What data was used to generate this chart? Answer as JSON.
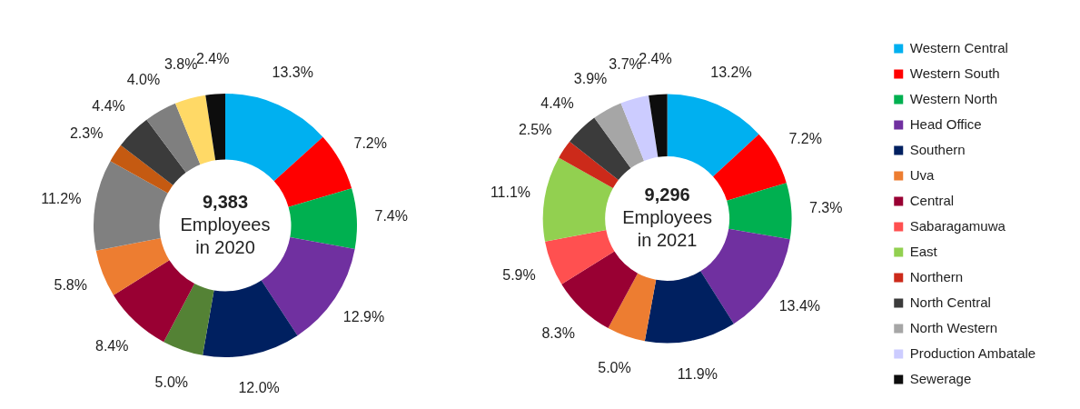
{
  "chart_data": [
    {
      "type": "donut",
      "title": "9,383",
      "subtitle": "Employees in 2020",
      "categories": [
        null,
        null,
        null,
        null,
        null,
        null,
        null,
        null,
        null,
        null,
        null,
        null,
        null,
        null
      ],
      "values": [
        13.3,
        7.2,
        7.4,
        12.9,
        12.0,
        5.0,
        8.4,
        5.8,
        11.2,
        2.3,
        4.4,
        4.0,
        3.8,
        2.4
      ],
      "value_labels": [
        "13.3%",
        "7.2%",
        "7.4%",
        "12.9%",
        "12.0%",
        "5.0%",
        "8.4%",
        "5.8%",
        "11.2%",
        "2.3%",
        "4.4%",
        "4.0%",
        "3.8%",
        "2.4%"
      ],
      "colors": [
        "#00b0f0",
        "#ff0000",
        "#00b050",
        "#7030a0",
        "#002060",
        "#548235",
        "#990033",
        "#ed7d31",
        "#808080",
        "#c55a11",
        "#3b3b3b",
        "#7f7f7f",
        "#ffd966",
        "#0d0d0d"
      ],
      "legend": false
    },
    {
      "type": "donut",
      "title": "9,296",
      "subtitle": "Employees in 2021",
      "categories": [
        "Western Central",
        "Western South",
        "Western North",
        "Head Office",
        "Southern",
        "Uva",
        "Central",
        "Sabaragamuwa",
        "East",
        "Northern",
        "North Central",
        "North Western",
        "Production Ambatale",
        "Sewerage"
      ],
      "values": [
        13.2,
        7.2,
        7.3,
        13.4,
        11.9,
        5.0,
        8.3,
        5.9,
        11.1,
        2.5,
        4.4,
        3.9,
        3.7,
        2.4
      ],
      "value_labels": [
        "13.2%",
        "7.2%",
        "7.3%",
        "13.4%",
        "11.9%",
        "5.0%",
        "8.3%",
        "5.9%",
        "11.1%",
        "2.5%",
        "4.4%",
        "3.9%",
        "3.7%",
        "2.4%"
      ],
      "colors": [
        "#00b0f0",
        "#ff0000",
        "#00b050",
        "#7030a0",
        "#002060",
        "#ed7d31",
        "#990033",
        "#ff5050",
        "#92d050",
        "#cc2a1a",
        "#3b3b3b",
        "#a6a6a6",
        "#ccccff",
        "#0d0d0d"
      ],
      "legend": "right"
    }
  ]
}
